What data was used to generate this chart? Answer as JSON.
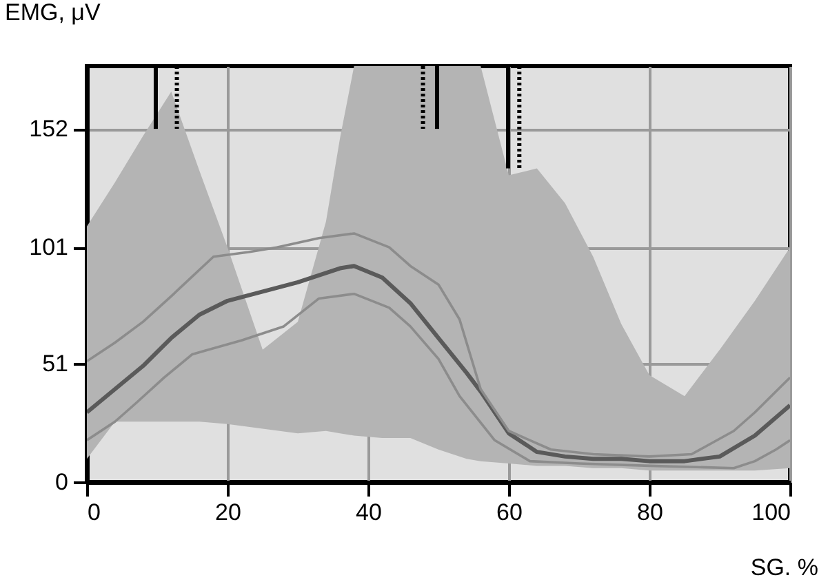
{
  "chart_data": {
    "type": "line",
    "xlabel": "SG. %",
    "ylabel": "EMG, μV",
    "xlim": [
      0,
      100
    ],
    "ylim": [
      0,
      179
    ],
    "xticks": [
      0,
      20,
      40,
      60,
      80,
      100
    ],
    "yticks": [
      0,
      51,
      101,
      152
    ],
    "grid": true,
    "marker": "none",
    "series": [
      {
        "color": "#5a5a5a",
        "x": [
          0,
          4,
          8,
          12,
          16,
          20,
          25,
          30,
          34,
          36,
          38,
          42,
          46,
          50,
          54,
          56,
          60,
          64,
          68,
          72,
          76,
          80,
          85,
          90,
          95,
          100
        ],
        "values": [
          30,
          40,
          50,
          62,
          72,
          78,
          82,
          86,
          90,
          92,
          93,
          88,
          77,
          62,
          47,
          39,
          21,
          13,
          11,
          10,
          10,
          9,
          9,
          11,
          20,
          33
        ],
        "upper": [
          110,
          129,
          149,
          168,
          134,
          101,
          57,
          69,
          112,
          148,
          179,
          179,
          179,
          179,
          179,
          179,
          132,
          135,
          120,
          97,
          68,
          46,
          37,
          57,
          78,
          101
        ],
        "lower": [
          10,
          26,
          26,
          26,
          26,
          25,
          23,
          21,
          22,
          21,
          20,
          19,
          19,
          14,
          10,
          9,
          8,
          7,
          7,
          6,
          6,
          5,
          5,
          5,
          5,
          6
        ]
      },
      {
        "color": "#8c8c8c",
        "x": [
          0,
          4,
          8,
          12,
          18,
          23,
          27,
          33,
          38,
          43,
          46,
          50,
          53,
          56,
          60,
          66,
          72,
          80,
          86,
          92,
          95,
          99,
          100
        ],
        "values": [
          52,
          60,
          69,
          80,
          97,
          99,
          101,
          105,
          107,
          101,
          93,
          85,
          70,
          40,
          22,
          14,
          12,
          11,
          12,
          22,
          30,
          42,
          45
        ]
      },
      {
        "color": "#8c8c8c",
        "x": [
          0,
          4,
          7,
          11,
          15,
          22,
          28,
          33,
          38,
          43,
          46,
          50,
          53,
          58,
          63,
          70,
          80,
          92,
          95,
          98,
          100
        ],
        "values": [
          18,
          26,
          34,
          45,
          55,
          61,
          67,
          79,
          81,
          75,
          67,
          53,
          37,
          18,
          9,
          8,
          7,
          6,
          9,
          14,
          18
        ]
      },
      {
        "color": "#000000",
        "line_style": "solid",
        "x": [
          9.8,
          9.8
        ],
        "values": [
          179,
          152
        ]
      },
      {
        "color": "#000000",
        "line_style": "dotted",
        "x": [
          12.8,
          12.8
        ],
        "values": [
          179,
          152
        ]
      },
      {
        "color": "#000000",
        "line_style": "dotted",
        "x": [
          47.8,
          47.8
        ],
        "values": [
          179,
          152
        ]
      },
      {
        "color": "#000000",
        "line_style": "solid",
        "x": [
          49.8,
          49.8
        ],
        "values": [
          179,
          152
        ]
      },
      {
        "color": "#000000",
        "line_style": "solid",
        "x": [
          59.9,
          59.9
        ],
        "values": [
          179,
          135
        ]
      },
      {
        "color": "#000000",
        "line_style": "dotted",
        "x": [
          61.5,
          61.5
        ],
        "values": [
          179,
          135
        ]
      }
    ]
  }
}
